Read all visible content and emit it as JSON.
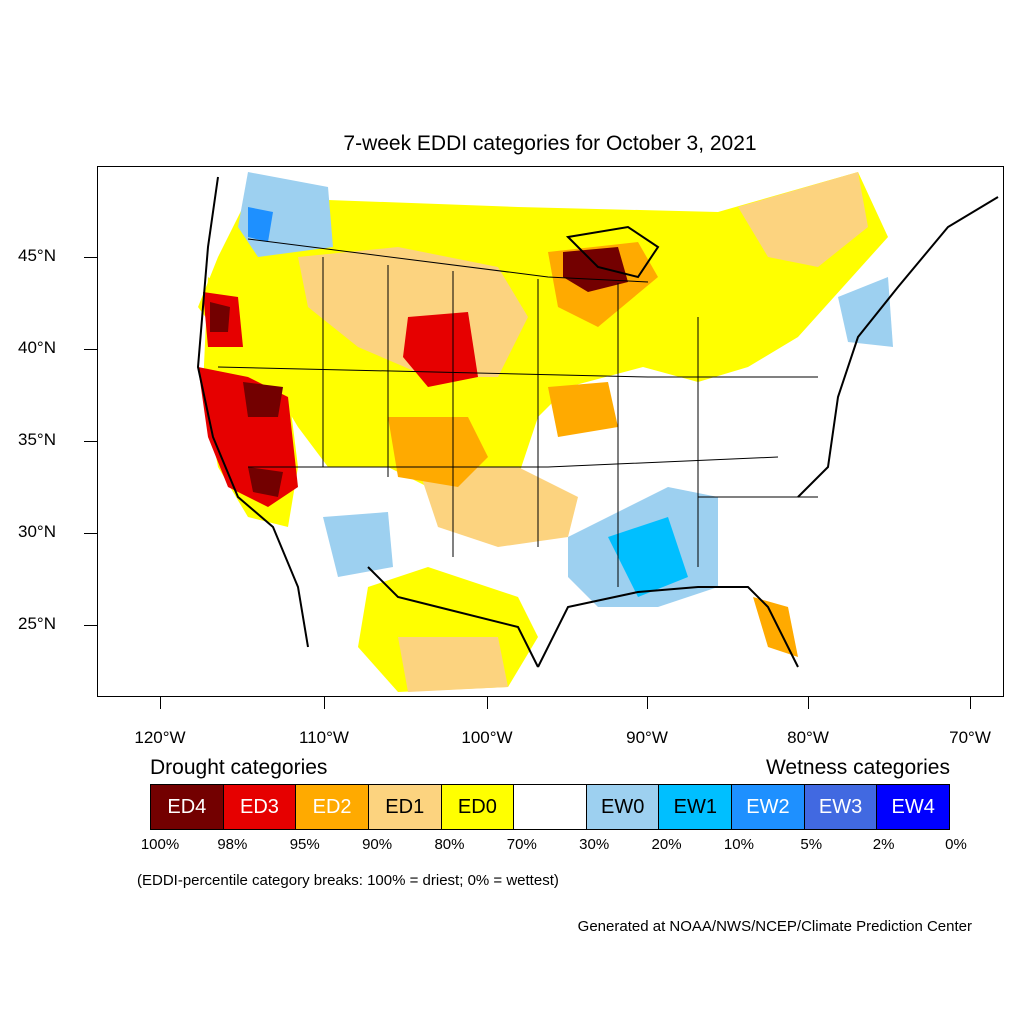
{
  "title": "7-week EDDI categories for October 3, 2021",
  "lat_labels": [
    "45°N",
    "40°N",
    "35°N",
    "30°N",
    "25°N"
  ],
  "lon_labels": [
    "120°W",
    "110°W",
    "100°W",
    "90°W",
    "80°W",
    "70°W"
  ],
  "legend": {
    "drought_heading": "Drought categories",
    "wetness_heading": "Wetness categories",
    "categories": [
      {
        "label": "ED4",
        "color": "#730000",
        "text_color": "#ffffff"
      },
      {
        "label": "ED3",
        "color": "#e60000",
        "text_color": "#ffffff"
      },
      {
        "label": "ED2",
        "color": "#ffaa00",
        "text_color": "#ffffff"
      },
      {
        "label": "ED1",
        "color": "#fcd37f",
        "text_color": "#000000"
      },
      {
        "label": "ED0",
        "color": "#ffff00",
        "text_color": "#000000"
      },
      {
        "label": "",
        "color": "#ffffff",
        "text_color": "#000000"
      },
      {
        "label": "EW0",
        "color": "#9dd0f0",
        "text_color": "#000000"
      },
      {
        "label": "EW1",
        "color": "#00bfff",
        "text_color": "#000000"
      },
      {
        "label": "EW2",
        "color": "#1e90ff",
        "text_color": "#ffffff"
      },
      {
        "label": "EW3",
        "color": "#4169e1",
        "text_color": "#ffffff"
      },
      {
        "label": "EW4",
        "color": "#0000ff",
        "text_color": "#ffffff"
      }
    ],
    "breaks": [
      "100%",
      "98%",
      "95%",
      "90%",
      "80%",
      "70%",
      "30%",
      "20%",
      "10%",
      "5%",
      "2%",
      "0%"
    ]
  },
  "note": "(EDDI-percentile category breaks: 100% = driest; 0% = wettest)",
  "credit": "Generated at NOAA/NWS/NCEP/Climate Prediction Center"
}
